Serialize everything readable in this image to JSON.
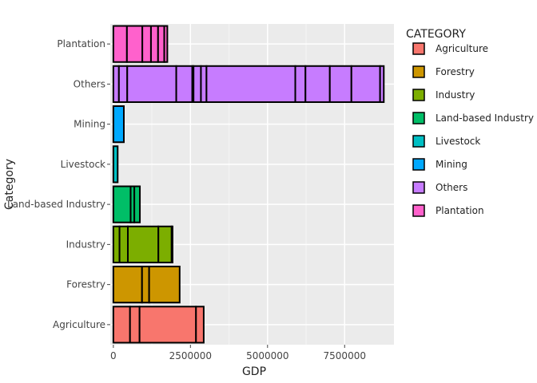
{
  "chart_data": {
    "type": "bar",
    "orientation": "horizontal",
    "stacked": true,
    "xlabel": "GDP",
    "ylabel": "Category",
    "xlim": [
      -100000,
      9100000
    ],
    "xticks": [
      0,
      2500000,
      5000000,
      7500000
    ],
    "xtick_labels": [
      "0",
      "2500000",
      "5000000",
      "7500000"
    ],
    "grid": true,
    "legend": {
      "title": "CATEGORY",
      "placement": "right"
    },
    "categories": [
      "Agriculture",
      "Forestry",
      "Industry",
      "Land-based Industry",
      "Livestock",
      "Mining",
      "Others",
      "Plantation"
    ],
    "colors": {
      "Agriculture": "#F8766D",
      "Forestry": "#CD9600",
      "Industry": "#7CAE00",
      "Land-based Industry": "#00BE67",
      "Livestock": "#00BFC4",
      "Mining": "#00A9FF",
      "Others": "#C77CFF",
      "Plantation": "#FF61CC"
    },
    "segments": {
      "Agriculture": [
        540000,
        310000,
        1830000,
        250000
      ],
      "Forestry": [
        930000,
        230000,
        990000
      ],
      "Industry": [
        200000,
        270000,
        990000,
        430000,
        30000
      ],
      "Land-based Industry": [
        560000,
        120000,
        180000
      ],
      "Livestock": [
        140000
      ],
      "Mining": [
        340000
      ],
      "Others": [
        180000,
        270000,
        1590000,
        520000,
        40000,
        240000,
        180000,
        2880000,
        330000,
        790000,
        700000,
        930000,
        120000
      ],
      "Plantation": [
        440000,
        500000,
        280000,
        230000,
        200000,
        100000
      ]
    },
    "totals": {
      "Agriculture": 2930000,
      "Forestry": 2150000,
      "Industry": 1920000,
      "Land-based Industry": 860000,
      "Livestock": 140000,
      "Mining": 340000,
      "Others": 8770000,
      "Plantation": 1750000
    }
  }
}
